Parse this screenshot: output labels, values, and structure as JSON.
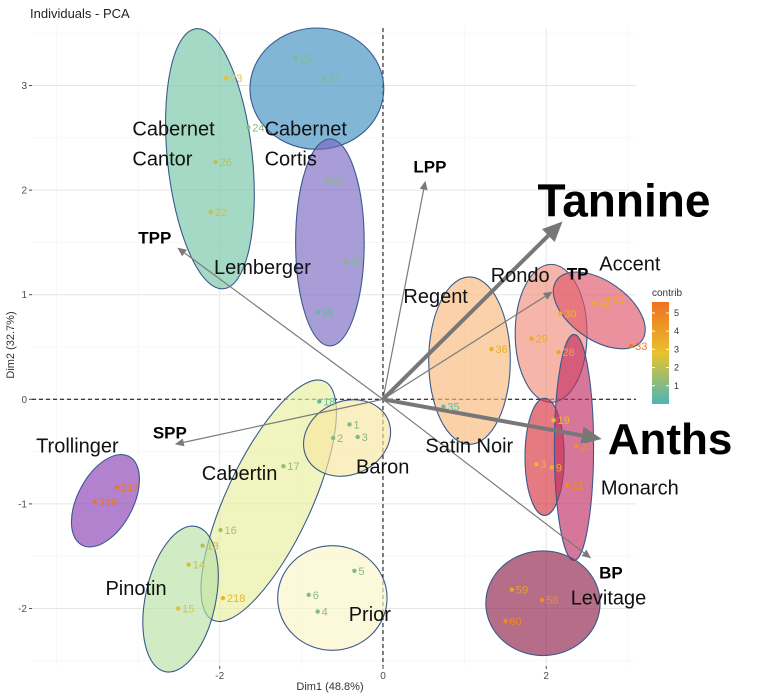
{
  "chart_data": {
    "type": "scatter",
    "title": "Individuals - PCA",
    "xlabel": "Dim1 (48.8%)",
    "ylabel": "Dim2 (32.7%)",
    "xlim": [
      -4.3,
      3.1
    ],
    "ylim": [
      -2.55,
      3.55
    ],
    "xticks": [
      -2,
      0,
      2
    ],
    "yticks": [
      -2,
      -1,
      0,
      1,
      2,
      3
    ],
    "grid": true,
    "legend": {
      "title": "contrib",
      "placement": "right",
      "ticks": [
        1,
        2,
        3,
        4,
        5
      ],
      "range": [
        0,
        5.6
      ],
      "colors": [
        "#4db5b5",
        "#e8c22e",
        "#f07020"
      ]
    },
    "groups": [
      {
        "name": "Cabernet\nCantor",
        "color": "#73c4a6",
        "ellipse": {
          "cx": -2.12,
          "cy": 2.3,
          "rx": 0.52,
          "ry": 1.25,
          "angle": -6
        },
        "label": {
          "x": -3.07,
          "y": 2.52
        }
      },
      {
        "name": "Cabernet\nCortis",
        "color": "#3f8fc2",
        "ellipse": {
          "cx": -0.81,
          "cy": 2.97,
          "rx": 0.82,
          "ry": 0.58,
          "angle": 0
        },
        "label": {
          "x": -1.45,
          "y": 2.52
        }
      },
      {
        "name": "Lemberger",
        "color": "#7b68c2",
        "ellipse": {
          "cx": -0.65,
          "cy": 1.5,
          "rx": 0.42,
          "ry": 0.99,
          "angle": 0
        },
        "label": {
          "x": -2.07,
          "y": 1.2
        }
      },
      {
        "name": "Regent",
        "color": "#f7b97b",
        "ellipse": {
          "cx": 1.06,
          "cy": 0.37,
          "rx": 0.5,
          "ry": 0.8,
          "angle": 0
        },
        "label": {
          "x": 0.25,
          "y": 0.92
        }
      },
      {
        "name": "Rondo",
        "color": "#ef8d7a",
        "ellipse": {
          "cx": 2.06,
          "cy": 0.63,
          "rx": 0.44,
          "ry": 0.66,
          "angle": 0
        },
        "label": {
          "x": 1.32,
          "y": 1.12
        }
      },
      {
        "name": "Accent",
        "color": "#e0566a",
        "ellipse": {
          "cx": 2.65,
          "cy": 0.85,
          "rx": 0.64,
          "ry": 0.28,
          "angle": 35
        },
        "label": {
          "x": 2.65,
          "y": 1.23
        }
      },
      {
        "name": "Satin Noir",
        "color": "#d7333f",
        "ellipse": {
          "cx": 1.98,
          "cy": -0.55,
          "rx": 0.24,
          "ry": 0.56,
          "angle": 0
        },
        "label": {
          "x": 0.52,
          "y": -0.51
        }
      },
      {
        "name": "Monarch",
        "color": "#c02e62",
        "ellipse": {
          "cx": 2.34,
          "cy": -0.46,
          "rx": 0.24,
          "ry": 1.08,
          "angle": 0
        },
        "label": {
          "x": 2.67,
          "y": -0.91
        }
      },
      {
        "name": "Levitage",
        "color": "#8e1f48",
        "ellipse": {
          "cx": 1.96,
          "cy": -1.95,
          "rx": 0.7,
          "ry": 0.5,
          "angle": 0
        },
        "label": {
          "x": 2.3,
          "y": -1.96
        }
      },
      {
        "name": "Trollinger",
        "color": "#8b3fb6",
        "ellipse": {
          "cx": -3.4,
          "cy": -0.97,
          "rx": 0.34,
          "ry": 0.48,
          "angle": 28
        },
        "label": {
          "x": -4.25,
          "y": -0.51
        }
      },
      {
        "name": "Cabertin",
        "color": "#e8ef9e",
        "ellipse": {
          "cx": -1.4,
          "cy": -0.97,
          "rx": 0.52,
          "ry": 1.26,
          "angle": 25
        },
        "label": {
          "x": -2.22,
          "y": -0.77
        }
      },
      {
        "name": "Baron",
        "color": "#f7e7a0",
        "ellipse": {
          "cx": -0.44,
          "cy": -0.37,
          "rx": 0.55,
          "ry": 0.35,
          "angle": -25
        },
        "label": {
          "x": -0.33,
          "y": -0.71
        }
      },
      {
        "name": "Pinotin",
        "color": "#b8e0a6",
        "ellipse": {
          "cx": -2.48,
          "cy": -1.91,
          "rx": 0.43,
          "ry": 0.71,
          "angle": 12
        },
        "label": {
          "x": -3.4,
          "y": -1.87
        }
      },
      {
        "name": "Prior",
        "color": "#fbf6c8",
        "ellipse": {
          "cx": -0.62,
          "cy": -1.9,
          "rx": 0.67,
          "ry": 0.5,
          "angle": 0
        },
        "label": {
          "x": -0.42,
          "y": -2.12
        }
      }
    ],
    "points": [
      {
        "label": "23",
        "x": -1.92,
        "y": 3.07,
        "contrib": 2.8
      },
      {
        "label": "24",
        "x": -1.65,
        "y": 2.6,
        "contrib": 1.0
      },
      {
        "label": "26",
        "x": -2.05,
        "y": 2.27,
        "contrib": 2.0
      },
      {
        "label": "22",
        "x": -2.11,
        "y": 1.79,
        "contrib": 2.3
      },
      {
        "label": "25",
        "x": -1.07,
        "y": 3.26,
        "contrib": 1.0
      },
      {
        "label": "27",
        "x": -0.72,
        "y": 3.06,
        "contrib": 1.0
      },
      {
        "label": "37",
        "x": -0.68,
        "y": 2.09,
        "contrib": 1.0
      },
      {
        "label": "39",
        "x": -0.45,
        "y": 1.32,
        "contrib": 0.9
      },
      {
        "label": "38",
        "x": -0.8,
        "y": 0.83,
        "contrib": 0.5
      },
      {
        "label": "36",
        "x": 1.33,
        "y": 0.48,
        "contrib": 3.5
      },
      {
        "label": "35",
        "x": 0.74,
        "y": -0.07,
        "contrib": 0.5
      },
      {
        "label": "30",
        "x": 2.17,
        "y": 0.82,
        "contrib": 3.3
      },
      {
        "label": "29",
        "x": 1.82,
        "y": 0.58,
        "contrib": 3.6
      },
      {
        "label": "28",
        "x": 2.15,
        "y": 0.45,
        "contrib": 3.7
      },
      {
        "label": "31",
        "x": 2.76,
        "y": 0.96,
        "contrib": 3.8
      },
      {
        "label": "32",
        "x": 2.58,
        "y": 0.92,
        "contrib": 3.5
      },
      {
        "label": "33",
        "x": 3.04,
        "y": 0.51,
        "contrib": 5.3
      },
      {
        "label": "19",
        "x": 2.09,
        "y": -0.2,
        "contrib": 2.9
      },
      {
        "label": "3",
        "x": 1.88,
        "y": -0.62,
        "contrib": 3.2
      },
      {
        "label": "9",
        "x": 2.07,
        "y": -0.65,
        "contrib": 3.3
      },
      {
        "label": "20",
        "x": 2.37,
        "y": -0.45,
        "contrib": 4.5
      },
      {
        "label": "21",
        "x": 2.26,
        "y": -0.82,
        "contrib": 4.6
      },
      {
        "label": "59",
        "x": 1.58,
        "y": -1.82,
        "contrib": 4.0
      },
      {
        "label": "58",
        "x": 1.95,
        "y": -1.92,
        "contrib": 4.5
      },
      {
        "label": "60",
        "x": 1.5,
        "y": -2.12,
        "contrib": 4.7
      },
      {
        "label": "217",
        "x": -3.26,
        "y": -0.84,
        "contrib": 5.4
      },
      {
        "label": "219",
        "x": -3.53,
        "y": -0.98,
        "contrib": 5.5
      },
      {
        "label": "18",
        "x": -0.78,
        "y": -0.02,
        "contrib": 0.4
      },
      {
        "label": "1",
        "x": -0.41,
        "y": -0.24,
        "contrib": 0.9
      },
      {
        "label": "2",
        "x": -0.61,
        "y": -0.37,
        "contrib": 1.0
      },
      {
        "label": "3",
        "x": -0.31,
        "y": -0.36,
        "contrib": 0.9
      },
      {
        "label": "17",
        "x": -1.22,
        "y": -0.64,
        "contrib": 1.3
      },
      {
        "label": "16",
        "x": -1.99,
        "y": -1.25,
        "contrib": 1.8
      },
      {
        "label": "13",
        "x": -2.21,
        "y": -1.4,
        "contrib": 2.0
      },
      {
        "label": "14",
        "x": -2.38,
        "y": -1.58,
        "contrib": 2.2
      },
      {
        "label": "15",
        "x": -2.51,
        "y": -2.0,
        "contrib": 2.6
      },
      {
        "label": "218",
        "x": -1.96,
        "y": -1.9,
        "contrib": 3.2
      },
      {
        "label": "5",
        "x": -0.35,
        "y": -1.64,
        "contrib": 0.9
      },
      {
        "label": "6",
        "x": -0.91,
        "y": -1.87,
        "contrib": 1.0
      },
      {
        "label": "4",
        "x": -0.8,
        "y": -2.03,
        "contrib": 1.0
      }
    ],
    "variables": [
      {
        "name": "LPP",
        "x": 0.52,
        "y": 2.09,
        "size": 17,
        "stroke": 1.2
      },
      {
        "name": "Tannine",
        "x": 2.2,
        "y": 1.7,
        "size": 46,
        "stroke": 4
      },
      {
        "name": "TPP",
        "x": -2.52,
        "y": 1.45,
        "size": 17,
        "stroke": 1.2
      },
      {
        "name": "TP",
        "x": 2.08,
        "y": 1.03,
        "size": 17,
        "stroke": 1.2
      },
      {
        "name": "SPP",
        "x": -2.55,
        "y": -0.43,
        "size": 17,
        "stroke": 1.2
      },
      {
        "name": "Anths",
        "x": 2.68,
        "y": -0.38,
        "size": 44,
        "stroke": 4
      },
      {
        "name": "BP",
        "x": 2.55,
        "y": -1.52,
        "size": 17,
        "stroke": 1.2
      }
    ]
  }
}
